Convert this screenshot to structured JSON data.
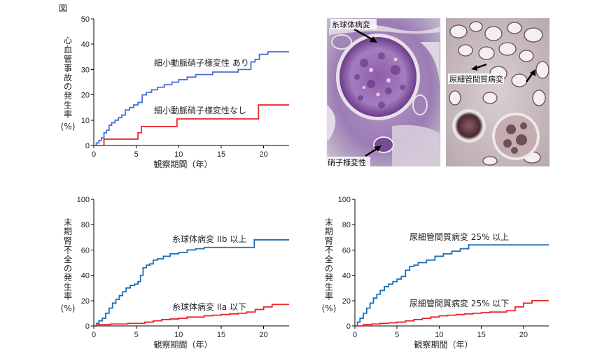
{
  "figure_label": "図",
  "chart_data": [
    {
      "type": "line",
      "step": true,
      "xlabel": "観察期間（年）",
      "ylabel": [
        "心",
        "血",
        "管",
        "事",
        "故",
        "の",
        "発",
        "生",
        "率",
        "(%)"
      ],
      "xlim": [
        0,
        23
      ],
      "ylim": [
        0,
        50
      ],
      "xticks": [
        0,
        5,
        10,
        15,
        20
      ],
      "yticks": [
        0,
        10,
        20,
        30,
        40,
        50
      ],
      "series": [
        {
          "name": "細小動脈硝子様変性 あり",
          "color": "#4a6fd8",
          "x": [
            0,
            0.3,
            0.6,
            0.9,
            1.2,
            1.5,
            1.8,
            2.1,
            2.5,
            2.9,
            3.3,
            3.7,
            4.2,
            4.7,
            5.2,
            5.7,
            6.2,
            6.8,
            7.5,
            8.3,
            9.2,
            10,
            11,
            12,
            13,
            14,
            15,
            16,
            17,
            18,
            18.5,
            19,
            19.5,
            20.5,
            23
          ],
          "y": [
            0,
            1,
            2,
            3,
            5,
            6,
            8,
            9,
            10,
            11,
            12,
            14,
            15,
            16,
            17,
            20,
            21,
            22,
            23,
            24,
            25,
            26,
            27,
            28,
            28,
            29,
            29,
            29,
            30,
            30,
            33,
            34,
            36,
            37,
            37
          ]
        },
        {
          "name": "細小動脈硝子様変性なし",
          "color": "#e8262a",
          "x": [
            0,
            1.2,
            5.2,
            5.6,
            9.8,
            19.4,
            23
          ],
          "y": [
            0,
            2.5,
            5,
            7.5,
            10.5,
            16,
            16
          ]
        }
      ]
    },
    {
      "type": "line",
      "step": true,
      "xlabel": "観察期間（年）",
      "ylabel": [
        "末",
        "期",
        "腎",
        "不",
        "全",
        "の",
        "発",
        "生",
        "率",
        "(%)"
      ],
      "xlim": [
        0,
        23
      ],
      "ylim": [
        0,
        100
      ],
      "xticks": [
        0,
        5,
        10,
        15,
        20
      ],
      "yticks": [
        0,
        20,
        40,
        60,
        80,
        100
      ],
      "series": [
        {
          "name": "糸球体病変 IIb 以上",
          "color": "#1f6fb4",
          "x": [
            0,
            0.3,
            0.6,
            1,
            1.4,
            1.8,
            2.2,
            2.6,
            3,
            3.4,
            3.8,
            4.3,
            4.8,
            5.2,
            5.5,
            5.8,
            6.2,
            6.6,
            7,
            7.5,
            8.2,
            9,
            10,
            11,
            12,
            13,
            15,
            17,
            18.9,
            23
          ],
          "y": [
            0,
            2,
            4,
            6,
            10,
            14,
            18,
            21,
            24,
            27,
            30,
            32,
            33,
            35,
            40,
            46,
            48,
            49,
            52,
            53,
            55,
            57,
            58,
            60,
            61,
            62,
            62,
            62,
            68,
            68
          ]
        },
        {
          "name": "糸球体病変 IIa 以下",
          "color": "#e8262a",
          "x": [
            0,
            0.5,
            2,
            4,
            6,
            7,
            8,
            9,
            10,
            11,
            12,
            13,
            14,
            15,
            16,
            17,
            18,
            19,
            20,
            21,
            23
          ],
          "y": [
            0,
            1,
            1.5,
            2,
            3,
            4,
            5,
            5.5,
            6,
            7,
            7,
            8,
            8.5,
            9,
            9.5,
            10,
            11,
            13,
            15,
            17,
            17
          ]
        }
      ]
    },
    {
      "type": "line",
      "step": true,
      "xlabel": "観察期間（年）",
      "ylabel": [
        "末",
        "期",
        "腎",
        "不",
        "全",
        "の",
        "発",
        "生",
        "率",
        "(%)"
      ],
      "xlim": [
        0,
        23
      ],
      "ylim": [
        0,
        100
      ],
      "xticks": [
        0,
        5,
        10,
        15,
        20
      ],
      "yticks": [
        0,
        20,
        40,
        60,
        80,
        100
      ],
      "series": [
        {
          "name": "尿細管間質病変 25% 以上",
          "color": "#1f6fb4",
          "x": [
            0,
            0.3,
            0.6,
            1,
            1.4,
            1.8,
            2.2,
            2.6,
            3,
            3.5,
            4,
            4.5,
            5,
            5.5,
            6,
            6.5,
            7,
            7.5,
            8.5,
            9.5,
            10.5,
            11.5,
            12.5,
            13.5,
            15,
            17,
            20,
            23
          ],
          "y": [
            0,
            3,
            6,
            10,
            14,
            18,
            22,
            25,
            28,
            31,
            33,
            35,
            37,
            39,
            44,
            47,
            48,
            50,
            52,
            55,
            57,
            59,
            61,
            64,
            64,
            64,
            64,
            64
          ]
        },
        {
          "name": "尿細管間質病変 25% 以下",
          "color": "#e8262a",
          "x": [
            0,
            1,
            2,
            3,
            4,
            5,
            6,
            7,
            8,
            9,
            10,
            11,
            12,
            13,
            14,
            15,
            16,
            17,
            18,
            19,
            20,
            21,
            23
          ],
          "y": [
            0,
            1,
            1.5,
            2,
            2.5,
            3,
            4,
            5,
            6,
            7,
            8,
            8.5,
            9,
            9.5,
            10,
            10.5,
            11,
            11,
            12,
            15,
            18,
            20,
            20
          ]
        }
      ]
    }
  ],
  "photos": [
    {
      "labels": [
        "糸球体病変",
        "硝子様変性"
      ]
    },
    {
      "labels": [
        "尿細管間質病変"
      ]
    }
  ]
}
